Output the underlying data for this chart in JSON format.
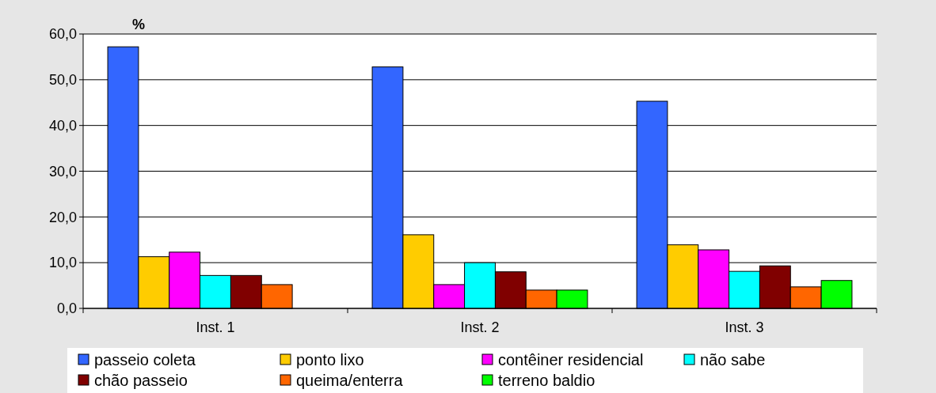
{
  "chart_data": {
    "type": "bar",
    "ylabel": "%",
    "categories": [
      "Inst. 1",
      "Inst. 2",
      "Inst. 3"
    ],
    "series": [
      {
        "name": "passeio coleta",
        "color": "#3366ff",
        "values": [
          57.2,
          52.8,
          45.3
        ]
      },
      {
        "name": "ponto lixo",
        "color": "#ffcc00",
        "values": [
          11.3,
          16.1,
          13.9
        ]
      },
      {
        "name": "contêiner residencial",
        "color": "#ff00ff",
        "values": [
          12.3,
          5.2,
          12.8
        ]
      },
      {
        "name": "não sabe",
        "color": "#00ffff",
        "values": [
          7.2,
          10.0,
          8.1
        ]
      },
      {
        "name": "chão passeio",
        "color": "#800000",
        "values": [
          7.2,
          8.0,
          9.3
        ]
      },
      {
        "name": "queima/enterra",
        "color": "#ff6600",
        "values": [
          5.2,
          4.0,
          4.7
        ]
      },
      {
        "name": "terreno baldio",
        "color": "#00ff00",
        "values": [
          null,
          4.0,
          6.1
        ]
      }
    ],
    "ylim": [
      0,
      60
    ],
    "yticks": [
      {
        "value": 0,
        "label": "0,0"
      },
      {
        "value": 10,
        "label": "10,0"
      },
      {
        "value": 20,
        "label": "20,0"
      },
      {
        "value": 30,
        "label": "30,0"
      },
      {
        "value": 40,
        "label": "40,0"
      },
      {
        "value": 50,
        "label": "50,0"
      },
      {
        "value": 60,
        "label": "60,0"
      }
    ],
    "grid": "y",
    "legend": "bottom"
  }
}
